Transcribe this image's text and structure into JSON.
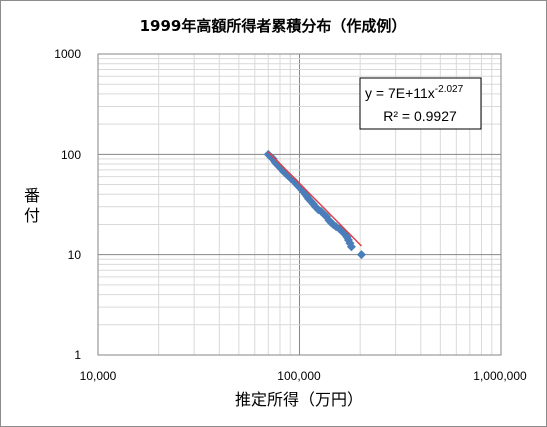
{
  "chart_data": {
    "type": "scatter",
    "title": "1999年高額所得者累積分布（作成例）",
    "xlabel": "推定所得（万円）",
    "ylabel": "番付",
    "x_scale": "log",
    "y_scale": "log",
    "xlim": [
      10000,
      1000000
    ],
    "ylim": [
      1,
      1000
    ],
    "x_ticks": [
      "10,000",
      "100,000",
      "1,000,000"
    ],
    "y_ticks": [
      "1",
      "10",
      "100",
      "1000"
    ],
    "grid": true,
    "legend": "none",
    "marker_color": "#4a7ebb",
    "trendline_color": "#d9444a",
    "points": [
      {
        "x": 70000,
        "y": 100
      },
      {
        "x": 72000,
        "y": 94
      },
      {
        "x": 74000,
        "y": 90
      },
      {
        "x": 75500,
        "y": 84
      },
      {
        "x": 77000,
        "y": 80
      },
      {
        "x": 79000,
        "y": 76
      },
      {
        "x": 81000,
        "y": 72
      },
      {
        "x": 83000,
        "y": 68
      },
      {
        "x": 85000,
        "y": 65
      },
      {
        "x": 87000,
        "y": 62
      },
      {
        "x": 89000,
        "y": 60
      },
      {
        "x": 91000,
        "y": 57
      },
      {
        "x": 93000,
        "y": 55
      },
      {
        "x": 95000,
        "y": 53
      },
      {
        "x": 97000,
        "y": 50
      },
      {
        "x": 99000,
        "y": 48
      },
      {
        "x": 101000,
        "y": 46
      },
      {
        "x": 103000,
        "y": 44
      },
      {
        "x": 105000,
        "y": 42
      },
      {
        "x": 107000,
        "y": 40
      },
      {
        "x": 109000,
        "y": 38
      },
      {
        "x": 111000,
        "y": 36
      },
      {
        "x": 114000,
        "y": 34
      },
      {
        "x": 117000,
        "y": 32
      },
      {
        "x": 120000,
        "y": 30
      },
      {
        "x": 124000,
        "y": 28
      },
      {
        "x": 128000,
        "y": 27
      },
      {
        "x": 133000,
        "y": 25
      },
      {
        "x": 136000,
        "y": 24
      },
      {
        "x": 140000,
        "y": 22
      },
      {
        "x": 143000,
        "y": 21
      },
      {
        "x": 147000,
        "y": 20
      },
      {
        "x": 152000,
        "y": 19
      },
      {
        "x": 158000,
        "y": 18
      },
      {
        "x": 163000,
        "y": 17
      },
      {
        "x": 168000,
        "y": 16
      },
      {
        "x": 172000,
        "y": 15
      },
      {
        "x": 175000,
        "y": 14
      },
      {
        "x": 178000,
        "y": 13
      },
      {
        "x": 181000,
        "y": 12
      },
      {
        "x": 203000,
        "y": 10
      }
    ],
    "trendline": {
      "type": "power",
      "coefficient": 700000000000.0,
      "exponent": -2.027,
      "x_from": 70000,
      "x_to": 203000,
      "equation_base": "y = 7E+11x",
      "equation_exponent": "-2.027",
      "r_squared_text": "R² = 0.9927"
    }
  }
}
